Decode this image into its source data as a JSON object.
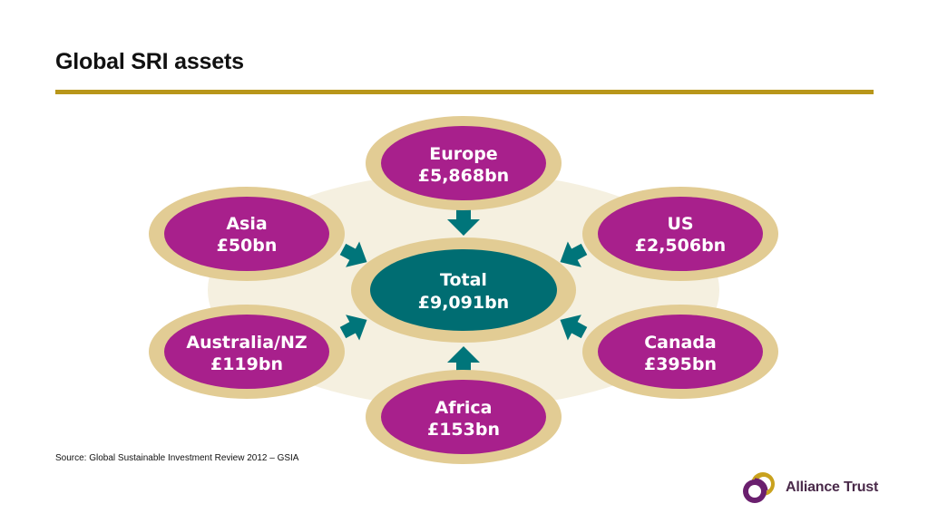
{
  "title": "Global SRI assets",
  "colors": {
    "rule": "#b8961a",
    "ring": "#e2cc94",
    "backdrop": "#f5f0e0",
    "region": "#a8208c",
    "total": "#006d72",
    "arrow": "#00757a"
  },
  "diagram": {
    "total": {
      "name": "Total",
      "value": "£9,091bn"
    },
    "regions": [
      {
        "id": "europe",
        "name": "Europe",
        "value": "£5,868bn"
      },
      {
        "id": "asia",
        "name": "Asia",
        "value": "£50bn"
      },
      {
        "id": "us",
        "name": "US",
        "value": "£2,506bn"
      },
      {
        "id": "australia-nz",
        "name": "Australia/NZ",
        "value": "£119bn"
      },
      {
        "id": "canada",
        "name": "Canada",
        "value": "£395bn"
      },
      {
        "id": "africa",
        "name": "Africa",
        "value": "£153bn"
      }
    ]
  },
  "source": "Source: Global Sustainable Investment Review 2012 – GSIA",
  "logo": {
    "text": "Alliance Trust",
    "icon": "alliance-trust-logo-icon"
  }
}
